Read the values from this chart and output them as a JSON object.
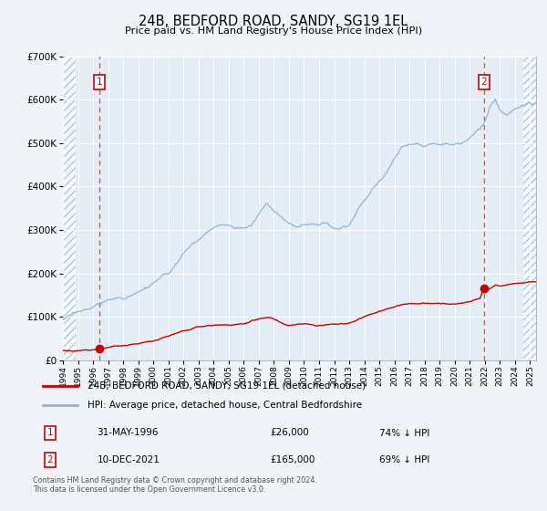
{
  "title": "24B, BEDFORD ROAD, SANDY, SG19 1EL",
  "subtitle": "Price paid vs. HM Land Registry's House Price Index (HPI)",
  "legend_line1": "24B, BEDFORD ROAD, SANDY, SG19 1EL (detached house)",
  "legend_line2": "HPI: Average price, detached house, Central Bedfordshire",
  "table_rows": [
    {
      "num": "1",
      "date": "31-MAY-1996",
      "price": "£26,000",
      "pct": "74% ↓ HPI"
    },
    {
      "num": "2",
      "date": "10-DEC-2021",
      "price": "£165,000",
      "pct": "69% ↓ HPI"
    }
  ],
  "footer": "Contains HM Land Registry data © Crown copyright and database right 2024.\nThis data is licensed under the Open Government Licence v3.0.",
  "hpi_color": "#92b4d4",
  "price_color": "#cc0000",
  "dashed_color": "#e05050",
  "bg_color": "#f0f4f8",
  "plot_bg": "#e4edf5",
  "grid_color": "#ffffff",
  "ylim": [
    0,
    700000
  ],
  "yticks": [
    0,
    100000,
    200000,
    300000,
    400000,
    500000,
    600000,
    700000
  ],
  "sale1_year": 1996.41,
  "sale1_price": 26000,
  "sale2_year": 2021.94,
  "sale2_price": 165000,
  "xmin": 1994.0,
  "xmax": 2025.4,
  "hatch_left_end": 1994.85,
  "hatch_right_start": 2024.55
}
